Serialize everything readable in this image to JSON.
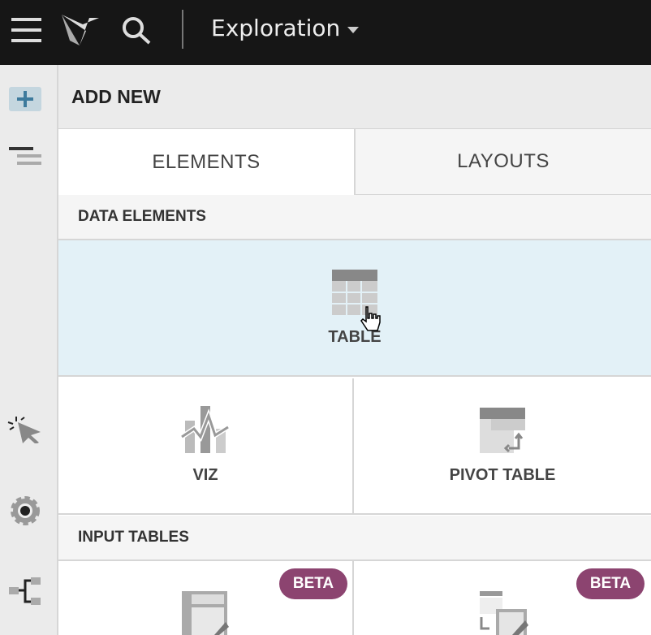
{
  "topbar": {
    "title": "Exploration",
    "icons": [
      "menu-icon",
      "logo-icon",
      "search-icon",
      "caret-down-icon"
    ]
  },
  "sidebar": {
    "icons": [
      "plus-icon",
      "outline-icon",
      "interaction-icon",
      "settings-icon",
      "hierarchy-icon"
    ]
  },
  "panel": {
    "header": "ADD NEW",
    "tabs": [
      {
        "label": "ELEMENTS",
        "active": true
      },
      {
        "label": "LAYOUTS",
        "active": false
      }
    ],
    "sections": [
      {
        "title": "DATA ELEMENTS",
        "items": [
          {
            "label": "TABLE"
          },
          {
            "label": "VIZ"
          },
          {
            "label": "PIVOT TABLE"
          }
        ]
      },
      {
        "title": "INPUT TABLES",
        "items": [
          {
            "badge": "BETA"
          },
          {
            "badge": "BETA"
          }
        ]
      }
    ]
  },
  "colors": {
    "topbar": "#161616",
    "hover_tile": "#e3f1f7",
    "beta": "#8c4470",
    "accent": "#3d7a9c"
  }
}
